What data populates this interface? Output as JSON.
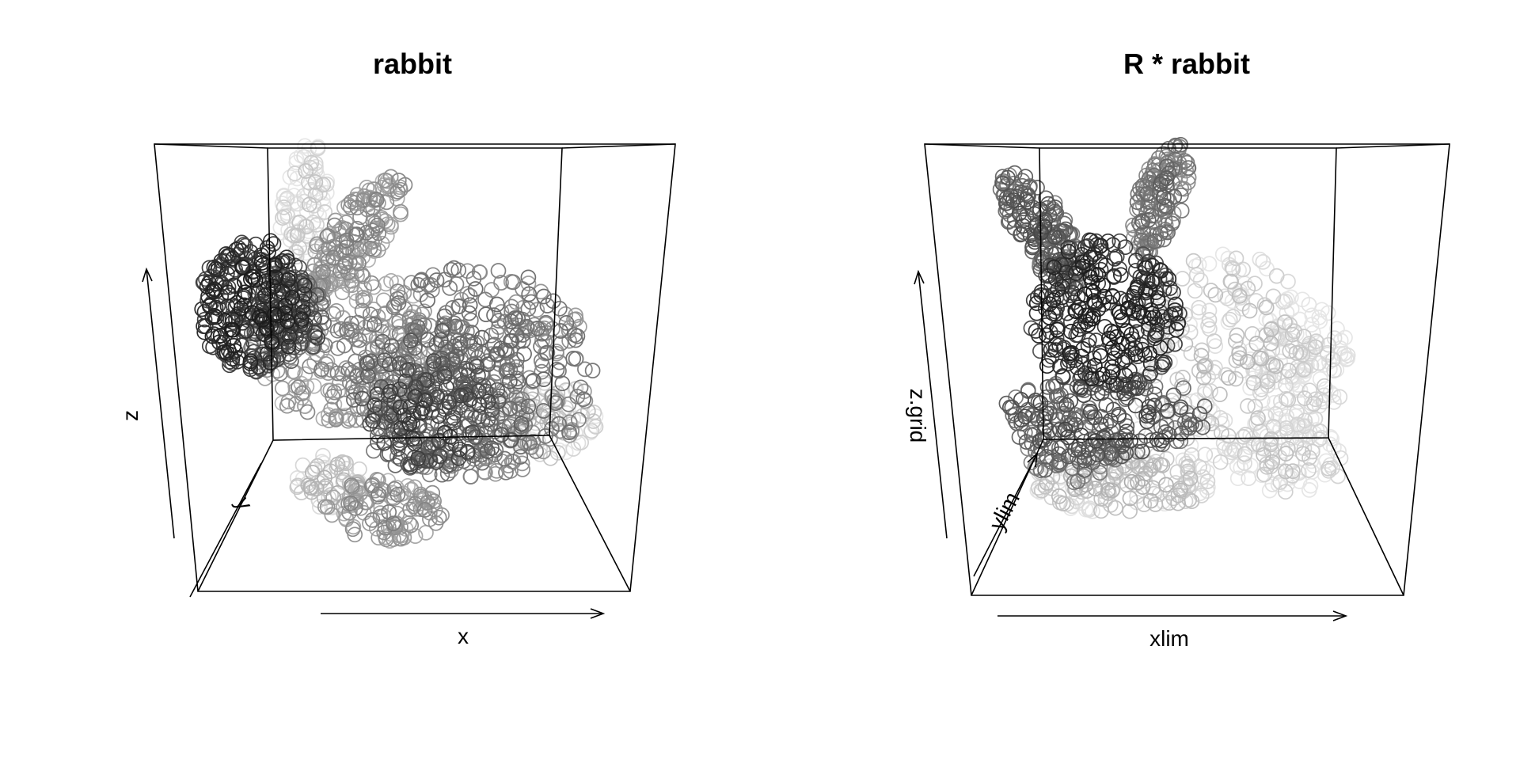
{
  "chart_data": [
    {
      "type": "scatter",
      "title": "rabbit",
      "xlabel": "x",
      "ylabel": "y",
      "zlabel": "z",
      "projection": "3d-perspective",
      "marker": "open-circle",
      "colors": {
        "near": "#1c1c1c",
        "far": "#e6e6e6"
      },
      "box": true
    },
    {
      "type": "scatter",
      "title": "R * rabbit",
      "xlabel": "xlim",
      "ylabel": "ylim",
      "zlabel": "z.grid",
      "projection": "3d-perspective",
      "marker": "open-circle",
      "colors": {
        "near": "#1c1c1c",
        "far": "#e6e6e6"
      },
      "box": true
    }
  ]
}
